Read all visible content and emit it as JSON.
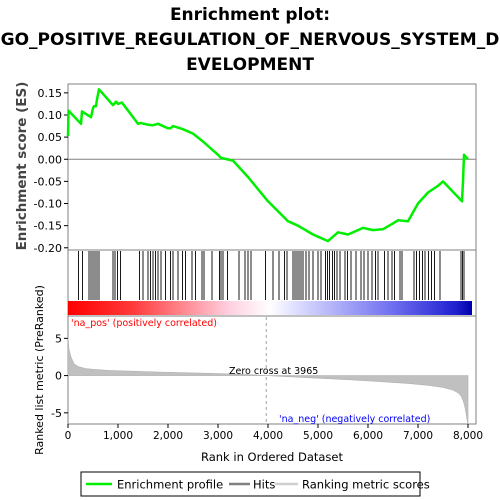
{
  "chart_data": {
    "type": "line",
    "title_lines": [
      "Enrichment plot:",
      "GO_POSITIVE_REGULATION_OF_NERVOUS_SYSTEM_D",
      "EVELOPMENT"
    ],
    "xlabel": "Rank in Ordered Dataset",
    "xlim": [
      0,
      8200
    ],
    "x_ticks": [
      "0",
      "1,000",
      "2,000",
      "3,000",
      "4,000",
      "5,000",
      "6,000",
      "7,000",
      "8,000"
    ],
    "x_tick_values": [
      0,
      1000,
      2000,
      3000,
      4000,
      5000,
      6000,
      7000,
      8000
    ],
    "top_panel": {
      "ylabel": "Enrichment score (ES)",
      "ylim": [
        -0.205,
        0.17
      ],
      "y_ticks": [
        "0.15",
        "0.10",
        "0.05",
        "0.00",
        "-0.05",
        "-0.10",
        "-0.15",
        "-0.20"
      ],
      "y_tick_values": [
        0.15,
        0.1,
        0.05,
        0.0,
        -0.05,
        -0.1,
        -0.15,
        -0.2
      ],
      "series": [
        {
          "name": "Enrichment profile",
          "color": "#00ee00",
          "x": [
            0,
            10,
            260,
            280,
            460,
            500,
            520,
            560,
            580,
            620,
            900,
            960,
            1000,
            1080,
            1400,
            1450,
            1600,
            1700,
            1800,
            2000,
            2050,
            2100,
            2300,
            2500,
            2700,
            3000,
            3060,
            3300,
            3600,
            4000,
            4400,
            4600,
            4900,
            5000,
            5200,
            5400,
            5600,
            5800,
            5900,
            6100,
            6300,
            6500,
            6600,
            6800,
            6900,
            7000,
            7200,
            7400,
            7500,
            7880,
            7900,
            7920,
            8000
          ],
          "y": [
            0.052,
            0.11,
            0.08,
            0.108,
            0.095,
            0.115,
            0.12,
            0.12,
            0.135,
            0.158,
            0.122,
            0.13,
            0.125,
            0.128,
            0.08,
            0.082,
            0.078,
            0.077,
            0.08,
            0.07,
            0.07,
            0.075,
            0.068,
            0.058,
            0.04,
            0.01,
            0.003,
            -0.003,
            -0.04,
            -0.095,
            -0.14,
            -0.15,
            -0.17,
            -0.175,
            -0.185,
            -0.165,
            -0.17,
            -0.16,
            -0.155,
            -0.16,
            -0.158,
            -0.145,
            -0.138,
            -0.14,
            -0.12,
            -0.1,
            -0.075,
            -0.06,
            -0.05,
            -0.095,
            -0.05,
            0.01,
            0.0
          ]
        }
      ]
    },
    "hits_panel": {
      "name": "Hits",
      "hit_ranks": [
        210,
        290,
        420,
        460,
        500,
        540,
        580,
        620,
        900,
        940,
        990,
        1050,
        1430,
        1500,
        1600,
        1650,
        1700,
        1750,
        1800,
        1860,
        1950,
        2050,
        2100,
        2200,
        2290,
        2350,
        2480,
        2550,
        2680,
        2720,
        2880,
        3030,
        3060,
        3100,
        3190,
        3420,
        3540,
        3600,
        3660,
        3950,
        4100,
        4220,
        4330,
        4380,
        4500,
        4540,
        4580,
        4620,
        4660,
        4700,
        4760,
        4820,
        4900,
        5000,
        5060,
        5150,
        5190,
        5230,
        5290,
        5330,
        5380,
        5440,
        5540,
        5590,
        5660,
        5760,
        5860,
        5920,
        6000,
        6080,
        6150,
        6200,
        6330,
        6400,
        6480,
        6530,
        6640,
        6680,
        6920,
        6970,
        7030,
        7090,
        7140,
        7210,
        7270,
        7330,
        7440,
        7860,
        7890,
        7920
      ]
    },
    "bar_labels": {
      "pos": "'na_pos' (positively correlated)",
      "neg": "'na_neg' (negatively correlated)",
      "pos_color": "#ff0000",
      "neg_color": "#0000ff"
    },
    "bottom_panel": {
      "ylabel": "Ranked list metric (PreRanked)",
      "ylim": [
        -6.5,
        8
      ],
      "y_ticks": [
        "5",
        "0",
        "-5"
      ],
      "y_tick_values": [
        5,
        0,
        -5
      ],
      "zero_cross_label": "Zero cross at 3965",
      "zero_cross": 3965,
      "metric_curve": {
        "name": "Ranking metric scores",
        "color": "#c0c0c0",
        "x": [
          0,
          20,
          60,
          120,
          200,
          350,
          500,
          800,
          1200,
          1800,
          2400,
          3000,
          3600,
          3965,
          4400,
          5000,
          5600,
          6200,
          6800,
          7200,
          7500,
          7700,
          7800,
          7860,
          7900,
          7930,
          7960,
          7990,
          8000
        ],
        "y": [
          5.2,
          3.5,
          2.5,
          1.6,
          1.2,
          0.95,
          0.85,
          0.7,
          0.6,
          0.48,
          0.38,
          0.27,
          0.14,
          0.0,
          -0.15,
          -0.35,
          -0.55,
          -0.8,
          -1.05,
          -1.3,
          -1.6,
          -1.95,
          -2.3,
          -2.7,
          -3.3,
          -4.0,
          -5.0,
          -6.3,
          -6.5
        ]
      }
    },
    "legend": [
      {
        "name": "Enrichment profile",
        "color": "#00ee00"
      },
      {
        "name": "Hits",
        "color": "#808080"
      },
      {
        "name": "Ranking metric scores",
        "color": "#c8c8c8"
      }
    ]
  }
}
